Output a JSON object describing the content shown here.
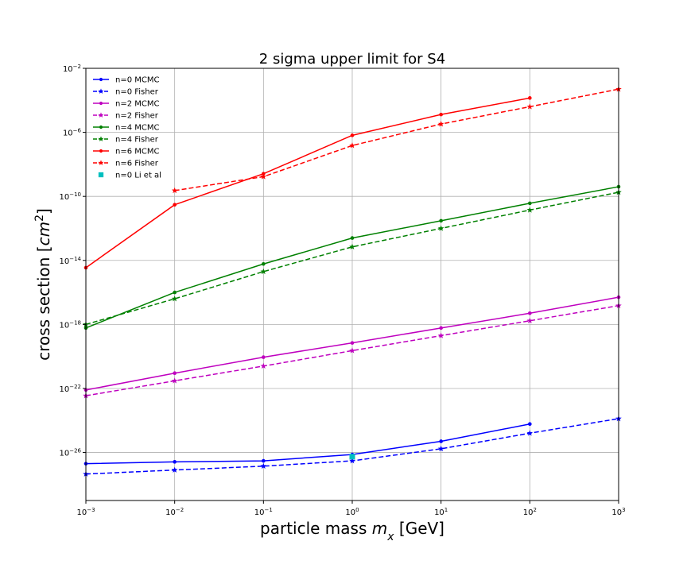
{
  "chart_data": {
    "type": "line",
    "title": "2 sigma upper limit for S4",
    "xlabel_prefix": "particle mass ",
    "xlabel_var": "m",
    "xlabel_sub": "x",
    "xlabel_suffix": " [GeV]",
    "ylabel_prefix": "cross section [",
    "ylabel_var": "cm",
    "ylabel_sup": "2",
    "ylabel_suffix": "]",
    "x_scale": "log",
    "y_scale": "log",
    "xlim": [
      0.001,
      1000
    ],
    "ylim": [
      1e-29,
      0.01
    ],
    "grid": true,
    "legend_position": "upper-left",
    "x_ticks": [
      {
        "value": 0.001,
        "base": "10",
        "exp": "−3"
      },
      {
        "value": 0.01,
        "base": "10",
        "exp": "−2"
      },
      {
        "value": 0.1,
        "base": "10",
        "exp": "−1"
      },
      {
        "value": 1,
        "base": "10",
        "exp": "0"
      },
      {
        "value": 10,
        "base": "10",
        "exp": "1"
      },
      {
        "value": 100,
        "base": "10",
        "exp": "2"
      },
      {
        "value": 1000,
        "base": "10",
        "exp": "3"
      }
    ],
    "y_ticks": [
      {
        "value": 1e-26,
        "base": "10",
        "exp": "−26"
      },
      {
        "value": 1e-22,
        "base": "10",
        "exp": "−22"
      },
      {
        "value": 1e-18,
        "base": "10",
        "exp": "−18"
      },
      {
        "value": 1e-14,
        "base": "10",
        "exp": "−14"
      },
      {
        "value": 1e-10,
        "base": "10",
        "exp": "−10"
      },
      {
        "value": 1e-06,
        "base": "10",
        "exp": "−6"
      },
      {
        "value": 0.01,
        "base": "10",
        "exp": "−2"
      }
    ],
    "series": [
      {
        "name": "n=0 MCMC",
        "color": "#0000ff",
        "dash": "solid",
        "marker": "dot",
        "x": [
          0.001,
          0.01,
          0.1,
          1,
          10,
          100
        ],
        "y": [
          2e-27,
          2.6e-27,
          3e-27,
          7.5e-27,
          5e-26,
          6e-25
        ]
      },
      {
        "name": "n=0 Fisher",
        "color": "#0000ff",
        "dash": "dashed",
        "marker": "star",
        "x": [
          0.001,
          0.01,
          0.1,
          1,
          10,
          100,
          1000
        ],
        "y": [
          4.5e-28,
          8e-28,
          1.4e-27,
          3e-27,
          1.7e-26,
          1.6e-25,
          1.3e-24
        ]
      },
      {
        "name": "n=2 MCMC",
        "color": "#bf00bf",
        "dash": "solid",
        "marker": "dot",
        "x": [
          0.001,
          0.01,
          0.1,
          1,
          10,
          100,
          1000
        ],
        "y": [
          8e-23,
          9e-22,
          9e-21,
          7e-20,
          6e-19,
          5e-18,
          5e-17
        ]
      },
      {
        "name": "n=2 Fisher",
        "color": "#bf00bf",
        "dash": "dashed",
        "marker": "star",
        "x": [
          0.001,
          0.01,
          0.1,
          1,
          10,
          100,
          1000
        ],
        "y": [
          3.5e-23,
          3e-22,
          2.5e-21,
          2.3e-20,
          2e-19,
          1.7e-18,
          1.5e-17
        ]
      },
      {
        "name": "n=4 MCMC",
        "color": "#008000",
        "dash": "solid",
        "marker": "dot",
        "x": [
          0.001,
          0.01,
          0.1,
          1,
          10,
          100,
          1000
        ],
        "y": [
          6e-19,
          1e-16,
          6e-15,
          2.5e-13,
          3e-12,
          3.7e-11,
          4e-10
        ]
      },
      {
        "name": "n=4 Fisher",
        "color": "#008000",
        "dash": "dashed",
        "marker": "star",
        "x": [
          0.001,
          0.01,
          0.1,
          1,
          10,
          100,
          1000
        ],
        "y": [
          1e-18,
          4e-17,
          2e-15,
          7e-14,
          1e-12,
          1.4e-11,
          1.8e-10
        ]
      },
      {
        "name": "n=6 MCMC",
        "color": "#ff0000",
        "dash": "solid",
        "marker": "dot",
        "x": [
          0.001,
          0.01,
          0.1,
          1,
          10,
          100
        ],
        "y": [
          3.5e-15,
          3e-11,
          2.6e-09,
          6.5e-07,
          1.3e-05,
          0.00014
        ]
      },
      {
        "name": "n=6 Fisher",
        "color": "#ff0000",
        "dash": "dashed",
        "marker": "star",
        "x": [
          0.01,
          0.1,
          1,
          10,
          100,
          1000
        ],
        "y": [
          2.3e-10,
          1.7e-09,
          1.5e-07,
          3.3e-06,
          4e-05,
          0.0005
        ]
      },
      {
        "name": "n=0 Li et al",
        "color": "#00bfbf",
        "dash": "none",
        "marker": "square",
        "x": [
          1
        ],
        "y": [
          5.5e-27
        ]
      }
    ]
  }
}
